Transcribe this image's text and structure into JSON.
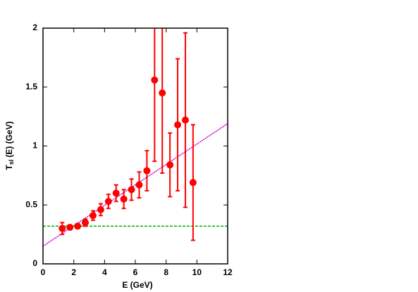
{
  "chart_data": {
    "type": "scatter",
    "x_label": "E  (GeV)",
    "y_label": "T",
    "y_label_sub": "sl",
    "y_label_rest": "(E)  (GeV)",
    "xlim": [
      0,
      12
    ],
    "ylim": [
      0,
      2
    ],
    "xticks": [
      0,
      2,
      4,
      6,
      8,
      10,
      12
    ],
    "yticks": [
      0,
      0.5,
      1,
      1.5,
      2
    ],
    "grid": false,
    "points": {
      "color": "#ff0000",
      "x": [
        1.25,
        1.75,
        2.25,
        2.75,
        3.25,
        3.75,
        4.25,
        4.75,
        5.25,
        5.75,
        6.25,
        6.75,
        7.25,
        7.75,
        8.25,
        8.75,
        9.25,
        9.75
      ],
      "values": [
        0.3,
        0.31,
        0.32,
        0.35,
        0.41,
        0.46,
        0.53,
        0.6,
        0.55,
        0.63,
        0.67,
        0.79,
        1.56,
        1.45,
        0.84,
        1.18,
        1.22,
        0.69
      ],
      "errors": [
        0.05,
        0.02,
        0.02,
        0.03,
        0.04,
        0.05,
        0.06,
        0.07,
        0.08,
        0.09,
        0.11,
        0.17,
        0.69,
        0.68,
        0.27,
        0.56,
        0.74,
        0.49
      ]
    },
    "lines": [
      {
        "color": "#cc00cc",
        "dash": "2,1",
        "x": [
          0,
          12
        ],
        "values": [
          0.15,
          1.19
        ]
      },
      {
        "color": "#00aa00",
        "dash": "4,2",
        "x": [
          0,
          12
        ],
        "values": [
          0.32,
          0.32
        ]
      }
    ]
  }
}
